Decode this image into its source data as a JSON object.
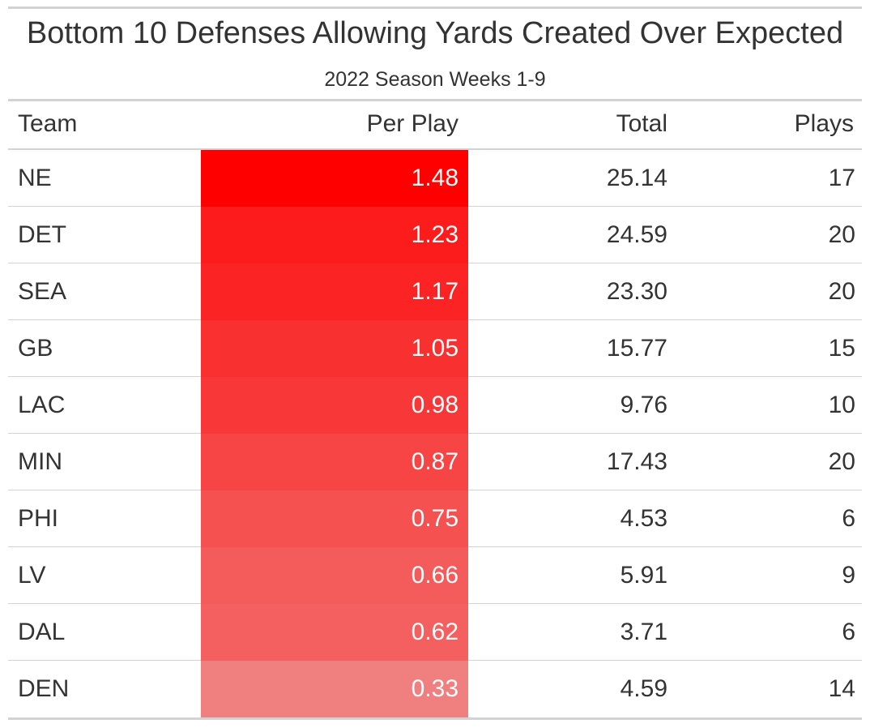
{
  "chart_data": {
    "type": "table",
    "title": "Bottom 10 Defenses Allowing Yards Created Over Expected",
    "subtitle": "2022 Season Weeks 1-9",
    "columns": [
      "Team",
      "Per Play",
      "Total",
      "Plays"
    ],
    "rows": [
      {
        "team": "NE",
        "per_play": "1.48",
        "total": "25.14",
        "plays": "17"
      },
      {
        "team": "DET",
        "per_play": "1.23",
        "total": "24.59",
        "plays": "20"
      },
      {
        "team": "SEA",
        "per_play": "1.17",
        "total": "23.30",
        "plays": "20"
      },
      {
        "team": "GB",
        "per_play": "1.05",
        "total": "15.77",
        "plays": "15"
      },
      {
        "team": "LAC",
        "per_play": "0.98",
        "total": "9.76",
        "plays": "10"
      },
      {
        "team": "MIN",
        "per_play": "0.87",
        "total": "17.43",
        "plays": "20"
      },
      {
        "team": "PHI",
        "per_play": "0.75",
        "total": "4.53",
        "plays": "6"
      },
      {
        "team": "LV",
        "per_play": "0.66",
        "total": "5.91",
        "plays": "9"
      },
      {
        "team": "DAL",
        "per_play": "0.62",
        "total": "3.71",
        "plays": "6"
      },
      {
        "team": "DEN",
        "per_play": "0.33",
        "total": "4.59",
        "plays": "14"
      }
    ],
    "color_scale": {
      "column": "Per Play",
      "high_color": "#ff0000",
      "low_color": "#f08080"
    }
  }
}
